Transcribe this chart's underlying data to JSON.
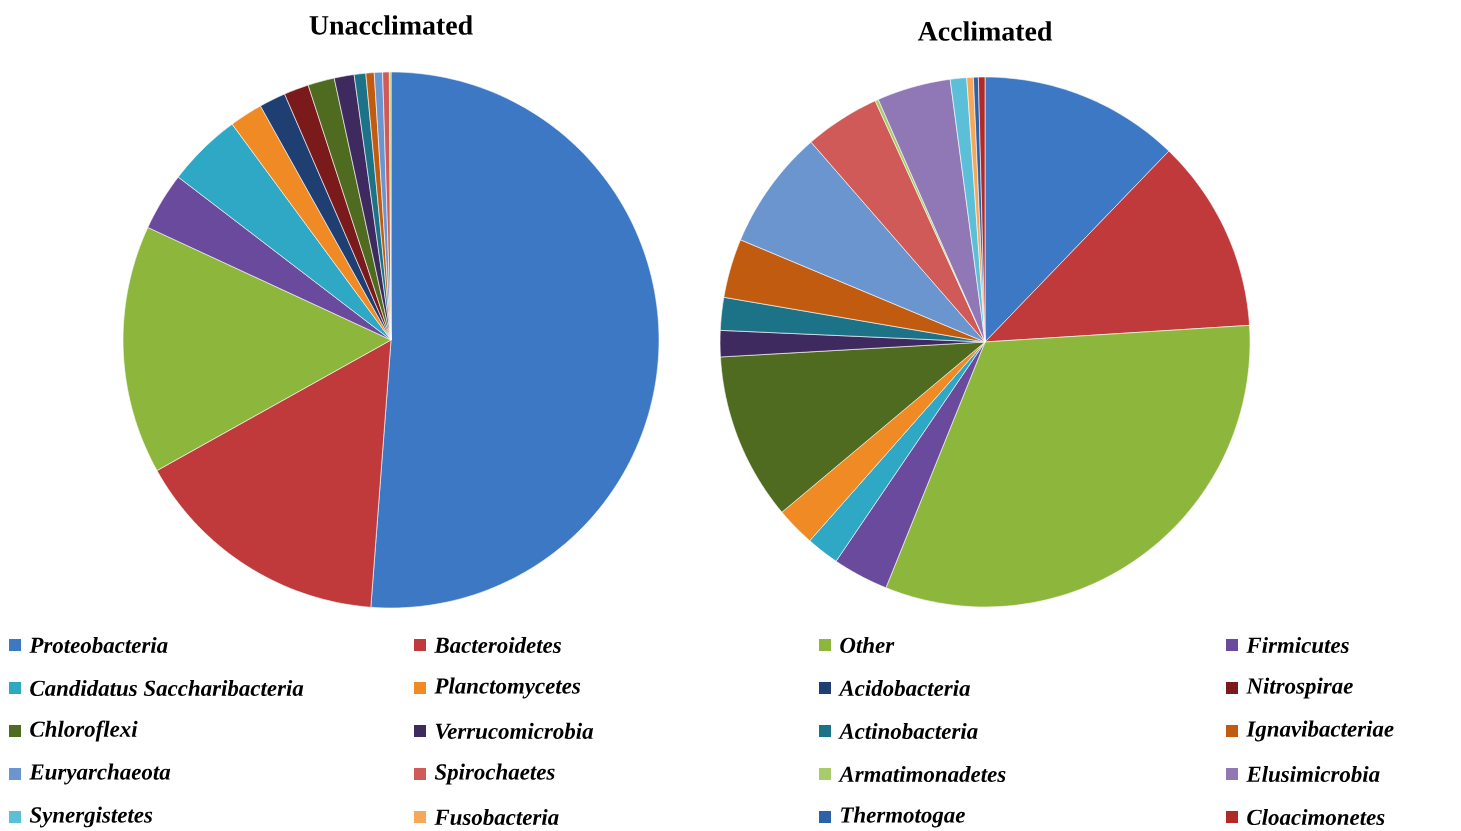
{
  "chart_data": [
    {
      "type": "pie",
      "title": "Unacclimated",
      "legend": "bottom",
      "categories": [
        "Proteobacteria",
        "Bacteroidetes",
        "Other",
        "Firmicutes",
        "Candidatus Saccharibacteria",
        "Planctomycetes",
        "Acidobacteria",
        "Nitrospirae",
        "Chloroflexi",
        "Verrucomicrobia",
        "Actinobacteria",
        "Ignavibacteriae",
        "Euryarchaeota",
        "Spirochaetes",
        "Armatimonadetes",
        "Elusimicrobia",
        "Synergistetes",
        "Fusobacteria",
        "Thermotogae",
        "Cloacimonetes"
      ],
      "values": [
        51.2,
        15.7,
        15.0,
        3.5,
        4.5,
        2.0,
        1.6,
        1.5,
        1.6,
        1.2,
        0.7,
        0.5,
        0.5,
        0.4,
        0.1,
        0,
        0,
        0,
        0,
        0
      ],
      "colors": [
        "#3d78c4",
        "#c0393b",
        "#8db63c",
        "#6a4a9c",
        "#2fa8c6",
        "#f08a24",
        "#1f3f73",
        "#7a1a1a",
        "#4e6b20",
        "#3e2a5e",
        "#1c7387",
        "#c05b10",
        "#6a95cf",
        "#d05a57",
        "#a8cc6a",
        "#9078b6",
        "#5bbfd8",
        "#f6a85a",
        "#2e62a8",
        "#b02a28"
      ]
    },
    {
      "type": "pie",
      "title": "Acclimated",
      "categories": [
        null,
        null,
        null,
        null,
        null,
        null,
        null,
        null,
        null,
        null,
        null,
        null,
        null,
        null,
        null,
        null,
        null,
        null,
        null,
        null
      ],
      "values": [
        12.2,
        11.8,
        32.1,
        3.4,
        2.0,
        2.4,
        0,
        0,
        10.2,
        1.6,
        2.0,
        3.6,
        7.3,
        4.6,
        0.2,
        4.5,
        1.0,
        0.4,
        0.3,
        0.4
      ],
      "colors": [
        "#3d78c4",
        "#c0393b",
        "#8db63c",
        "#6a4a9c",
        "#2fa8c6",
        "#f08a24",
        "#1f3f73",
        "#7a1a1a",
        "#4e6b20",
        "#3e2a5e",
        "#1c7387",
        "#c05b10",
        "#6a95cf",
        "#d05a57",
        "#a8cc6a",
        "#9078b6",
        "#5bbfd8",
        "#f6a85a",
        "#2e62a8",
        "#b02a28"
      ]
    }
  ]
}
